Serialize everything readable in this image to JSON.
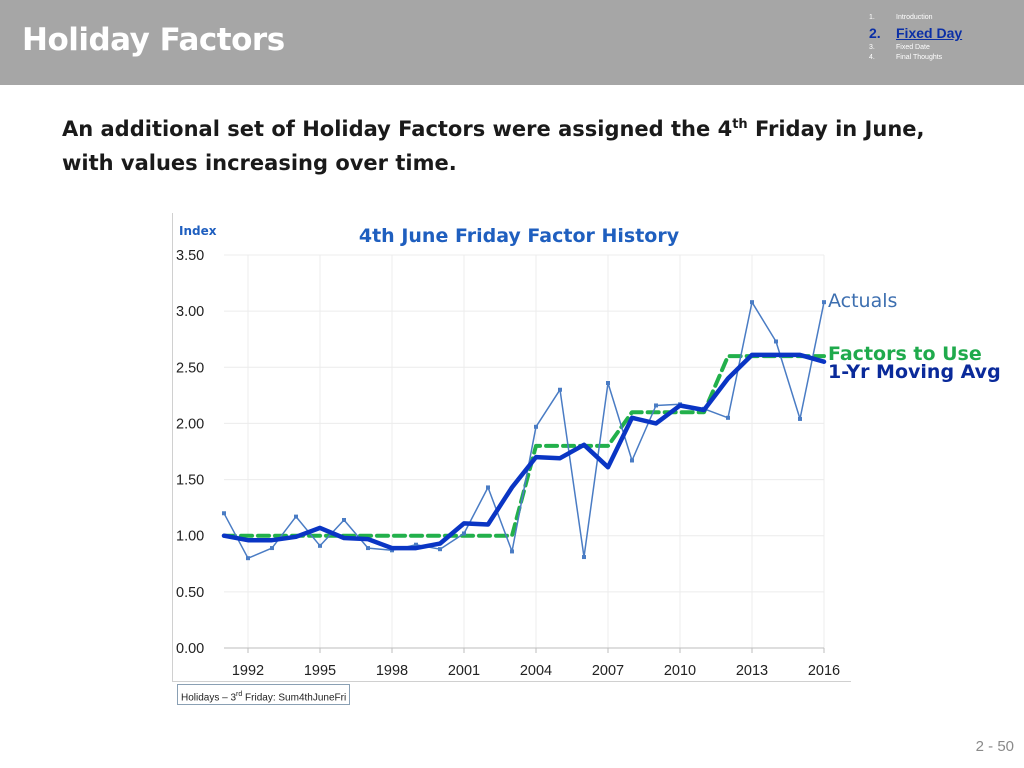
{
  "header": {
    "title": "Holiday Factors",
    "background": "#a6a6a6",
    "nav": [
      {
        "num": "1.",
        "label": "Introduction",
        "active": false
      },
      {
        "num": "2.",
        "label": "Fixed Day",
        "active": true
      },
      {
        "num": "3.",
        "label": "Fixed Date",
        "active": false
      },
      {
        "num": "4.",
        "label": "Final Thoughts",
        "active": false
      }
    ]
  },
  "subtitle": {
    "part1": "An additional set of Holiday Factors were assigned the 4",
    "sup": "th",
    "part2": " Friday in June, with values increasing over time."
  },
  "chart_data": {
    "type": "line",
    "title": "4th June Friday Factor History",
    "ylabel": "Index",
    "xlabel": "",
    "x_ticks": [
      "1992",
      "1995",
      "1998",
      "2001",
      "2004",
      "2007",
      "2010",
      "2013",
      "2016"
    ],
    "y_ticks": [
      "0.00",
      "0.50",
      "1.00",
      "1.50",
      "2.00",
      "2.50",
      "3.00",
      "3.50"
    ],
    "xlim": [
      1991,
      2016
    ],
    "ylim": [
      0,
      3.5
    ],
    "grid": true,
    "series": [
      {
        "name": "Actuals",
        "color": "#4a7cc4",
        "style": "thin line with markers",
        "x": [
          1991,
          1992,
          1993,
          1994,
          1995,
          1996,
          1997,
          1998,
          1999,
          2000,
          2001,
          2002,
          2003,
          2004,
          2005,
          2006,
          2007,
          2008,
          2009,
          2010,
          2011,
          2012,
          2013,
          2014,
          2015,
          2016
        ],
        "y": [
          1.2,
          0.8,
          0.89,
          1.17,
          0.91,
          1.14,
          0.89,
          0.87,
          0.92,
          0.88,
          1.02,
          1.43,
          0.86,
          1.97,
          2.3,
          0.81,
          2.36,
          1.67,
          2.16,
          2.17,
          2.13,
          2.05,
          3.08,
          2.73,
          2.04,
          3.08
        ]
      },
      {
        "name": "Factors to Use",
        "color": "#22b04b",
        "style": "dashed",
        "x": [
          1991,
          2003,
          2004,
          2007,
          2008,
          2011,
          2012,
          2016
        ],
        "y": [
          1.0,
          1.0,
          1.8,
          1.8,
          2.1,
          2.1,
          2.6,
          2.6
        ]
      },
      {
        "name": "1-Yr Moving Avg",
        "color": "#0a35c4",
        "style": "thick solid",
        "x": [
          1991,
          1992,
          1993,
          1994,
          1995,
          1996,
          1997,
          1998,
          1999,
          2000,
          2001,
          2002,
          2003,
          2004,
          2005,
          2006,
          2007,
          2008,
          2009,
          2010,
          2011,
          2012,
          2013,
          2014,
          2015,
          2016
        ],
        "y": [
          1.0,
          0.96,
          0.96,
          0.99,
          1.07,
          0.98,
          0.97,
          0.89,
          0.89,
          0.93,
          1.11,
          1.1,
          1.43,
          1.7,
          1.69,
          1.81,
          1.61,
          2.05,
          2.0,
          2.16,
          2.12,
          2.4,
          2.61,
          2.61,
          2.61,
          2.55
        ]
      }
    ]
  },
  "footer_link": {
    "part1": "Holidays – 3",
    "sup": "rd",
    "part2": " Friday:  Sum4thJuneFri"
  },
  "page_number": "2 -  50"
}
